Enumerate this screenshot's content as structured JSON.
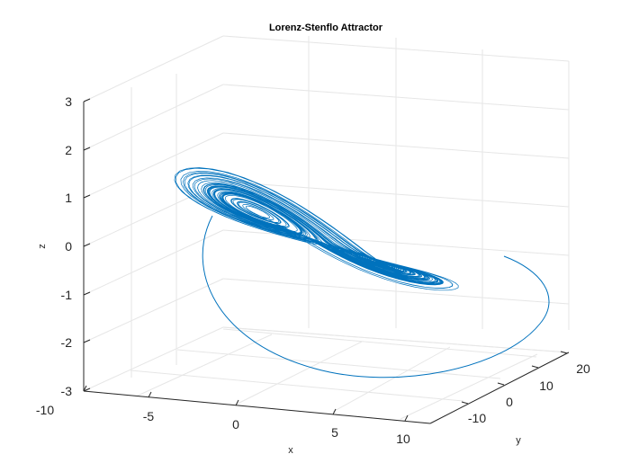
{
  "chart_data": {
    "type": "line",
    "title": "Lorenz-Stenflo Attractor",
    "xlabel": "x",
    "ylabel": "y",
    "zlabel": "z",
    "xlim": [
      -10,
      12
    ],
    "ylim": [
      -20,
      25
    ],
    "zlim": [
      -3,
      3
    ],
    "x_ticks": [
      "-10",
      "-5",
      "0",
      "5",
      "10"
    ],
    "y_ticks": [
      "-10",
      "0",
      "10",
      "20"
    ],
    "z_ticks": [
      "-3",
      "-2",
      "-1",
      "0",
      "1",
      "2",
      "3"
    ],
    "grid": true,
    "series": [
      {
        "line_color": "#0072BD"
      }
    ]
  }
}
